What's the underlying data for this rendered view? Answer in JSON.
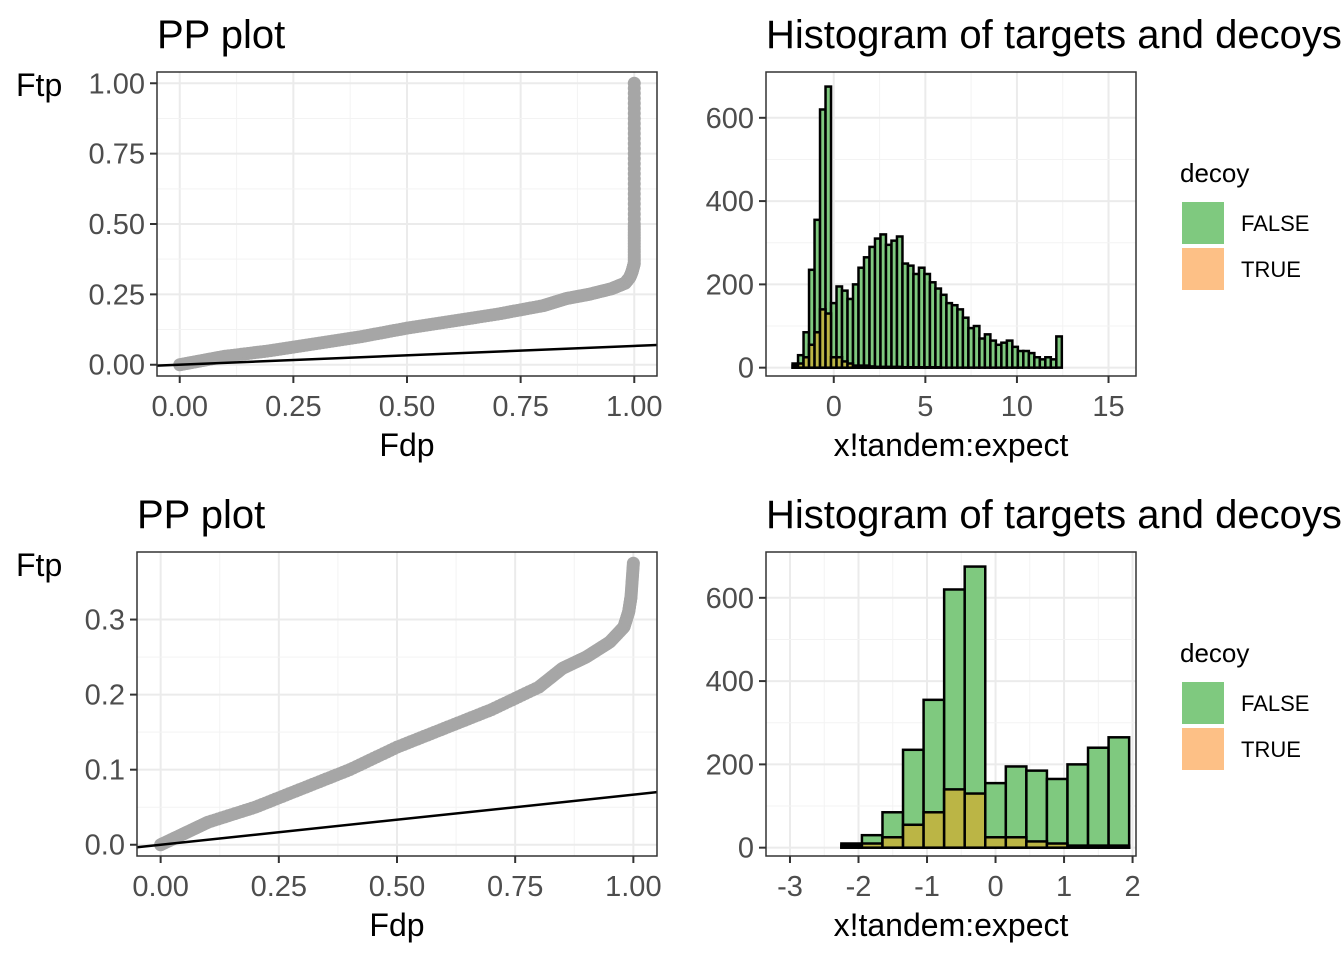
{
  "chart_data": [
    {
      "type": "scatter",
      "title": "PP plot",
      "xlabel": "Fdp",
      "ylabel": "Ftp",
      "xlim": [
        -0.05,
        1.05
      ],
      "ylim": [
        -0.04,
        1.04
      ],
      "xticks": [
        0,
        0.25,
        0.5,
        0.75,
        1.0
      ],
      "xtick_labels": [
        "0.00",
        "0.25",
        "0.50",
        "0.75",
        "1.00"
      ],
      "yticks": [
        0,
        0.25,
        0.5,
        0.75,
        1.0
      ],
      "ytick_labels": [
        "0.00",
        "0.25",
        "0.50",
        "0.75",
        "1.00"
      ],
      "grid": true,
      "point_color": "#a6a6a6",
      "curve": {
        "x": [
          0,
          0.05,
          0.1,
          0.2,
          0.3,
          0.4,
          0.5,
          0.6,
          0.7,
          0.8,
          0.85,
          0.9,
          0.95,
          0.98,
          0.99,
          0.995,
          1.0,
          1.0,
          1.0,
          1.0
        ],
        "y": [
          0,
          0.015,
          0.03,
          0.05,
          0.075,
          0.1,
          0.13,
          0.155,
          0.18,
          0.21,
          0.235,
          0.25,
          0.27,
          0.29,
          0.31,
          0.33,
          0.36,
          0.5,
          0.75,
          1.0
        ]
      },
      "reference_line": {
        "slope": 0.0667,
        "intercept": 0,
        "color": "#000000"
      }
    },
    {
      "type": "bar",
      "title": "Histogram of targets and decoys",
      "xlabel": "x!tandem:expect",
      "ylabel": "",
      "xlim": [
        -3.7,
        16.5
      ],
      "ylim": [
        -20,
        710
      ],
      "xticks": [
        0,
        5,
        10,
        15
      ],
      "xtick_labels": [
        "0",
        "5",
        "10",
        "15"
      ],
      "yticks": [
        0,
        200,
        400,
        600
      ],
      "ytick_labels": [
        "0",
        "200",
        "400",
        "600"
      ],
      "grid": true,
      "bin_start": -3.15,
      "bin_width": 0.3,
      "series": [
        {
          "name": "FALSE",
          "color": "#7fc97f",
          "values": [
            0,
            0,
            0,
            10,
            30,
            85,
            235,
            355,
            620,
            675,
            155,
            195,
            185,
            165,
            200,
            240,
            265,
            290,
            310,
            320,
            295,
            305,
            315,
            250,
            245,
            225,
            240,
            225,
            205,
            190,
            175,
            155,
            150,
            140,
            120,
            95,
            100,
            70,
            80,
            65,
            55,
            60,
            65,
            50,
            40,
            40,
            35,
            25,
            20,
            25,
            20,
            75
          ]
        },
        {
          "name": "TRUE",
          "color": "#fdc086",
          "values": [
            0,
            0,
            0,
            5,
            10,
            25,
            55,
            85,
            140,
            130,
            25,
            25,
            15,
            10,
            5,
            5,
            5,
            3,
            2,
            2,
            2,
            2,
            2,
            1,
            1,
            1,
            1,
            1,
            1,
            1,
            0,
            0,
            0,
            0,
            0,
            0,
            0,
            0,
            0,
            0,
            0,
            0,
            0,
            0,
            0,
            0,
            0,
            0,
            0,
            0,
            0,
            0
          ]
        }
      ],
      "overlap_color": "#bfb442"
    },
    {
      "type": "scatter",
      "title": "PP plot",
      "xlabel": "Fdp",
      "ylabel": "Ftp",
      "xlim": [
        -0.05,
        1.05
      ],
      "ylim": [
        -0.015,
        0.39
      ],
      "xticks": [
        0,
        0.25,
        0.5,
        0.75,
        1.0
      ],
      "xtick_labels": [
        "0.00",
        "0.25",
        "0.50",
        "0.75",
        "1.00"
      ],
      "yticks": [
        0,
        0.1,
        0.2,
        0.3
      ],
      "ytick_labels": [
        "0.0",
        "0.1",
        "0.2",
        "0.3"
      ],
      "grid": true,
      "point_color": "#a6a6a6",
      "curve": {
        "x": [
          0,
          0.05,
          0.1,
          0.2,
          0.3,
          0.4,
          0.5,
          0.6,
          0.7,
          0.8,
          0.85,
          0.9,
          0.95,
          0.98,
          0.99,
          0.995,
          1.0
        ],
        "y": [
          0,
          0.015,
          0.03,
          0.05,
          0.075,
          0.1,
          0.13,
          0.155,
          0.18,
          0.21,
          0.235,
          0.25,
          0.27,
          0.29,
          0.31,
          0.33,
          0.375
        ]
      },
      "reference_line": {
        "slope": 0.0667,
        "intercept": 0,
        "color": "#000000"
      }
    },
    {
      "type": "bar",
      "title": "Histogram of targets and decoys",
      "xlabel": "x!tandem:expect",
      "ylabel": "",
      "xlim": [
        -3.35,
        2.05
      ],
      "ylim": [
        -20,
        710
      ],
      "xticks": [
        -3,
        -2,
        -1,
        0,
        1,
        2
      ],
      "xtick_labels": [
        "-3",
        "-2",
        "-1",
        "0",
        "1",
        "2"
      ],
      "yticks": [
        0,
        200,
        400,
        600
      ],
      "ytick_labels": [
        "0",
        "200",
        "400",
        "600"
      ],
      "grid": true,
      "bin_start": -3.15,
      "bin_width": 0.3,
      "series": [
        {
          "name": "FALSE",
          "color": "#7fc97f",
          "values": [
            0,
            0,
            0,
            10,
            30,
            85,
            235,
            355,
            620,
            675,
            155,
            195,
            185,
            165,
            200,
            240,
            265
          ]
        },
        {
          "name": "TRUE",
          "color": "#fdc086",
          "values": [
            0,
            0,
            0,
            5,
            10,
            25,
            55,
            85,
            140,
            130,
            25,
            25,
            15,
            10,
            5,
            5,
            5
          ]
        }
      ],
      "overlap_color": "#bfb442"
    }
  ],
  "legend": {
    "title": "decoy",
    "items": [
      {
        "label": "FALSE",
        "color": "#7fc97f"
      },
      {
        "label": "TRUE",
        "color": "#fdc086"
      }
    ]
  }
}
